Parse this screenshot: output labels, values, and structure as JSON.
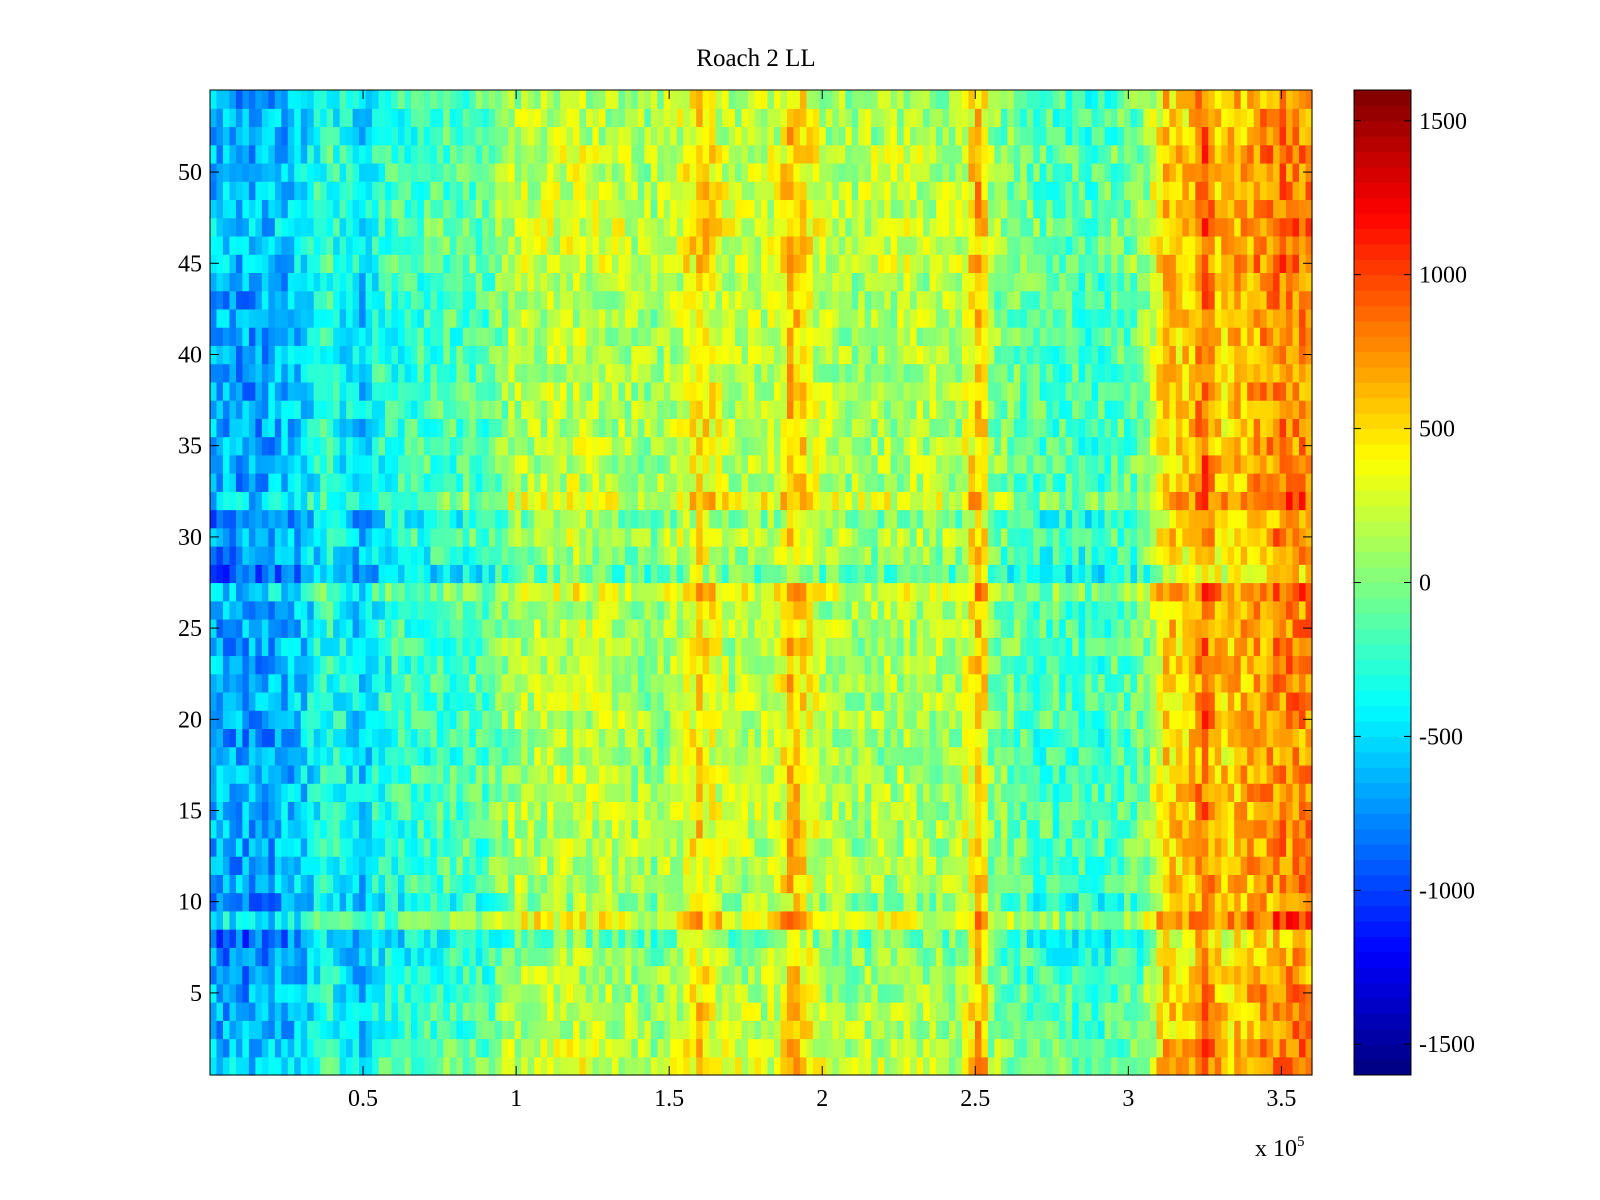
{
  "chart_data": {
    "type": "heatmap",
    "title": "Roach 2 LL",
    "xlabel": "",
    "ylabel": "",
    "x_exponent_label": "x 10",
    "x_exponent_power": "5",
    "xlim": [
      0,
      3.6
    ],
    "ylim": [
      0.5,
      54.5
    ],
    "x_ticks": [
      0.5,
      1,
      1.5,
      2,
      2.5,
      3,
      3.5
    ],
    "x_tick_labels": [
      "0.5",
      "1",
      "1.5",
      "2",
      "2.5",
      "3",
      "3.5"
    ],
    "y_ticks": [
      5,
      10,
      15,
      20,
      25,
      30,
      35,
      40,
      45,
      50
    ],
    "y_tick_labels": [
      "5",
      "10",
      "15",
      "20",
      "25",
      "30",
      "35",
      "40",
      "45",
      "50"
    ],
    "rows": 54,
    "colormap": "jet",
    "colorbar": {
      "clim": [
        -1600,
        1600
      ],
      "ticks": [
        -1500,
        -1000,
        -500,
        0,
        500,
        1000,
        1500
      ],
      "tick_labels": [
        "-1500",
        "-1000",
        "-500",
        "0",
        "500",
        "1000",
        "1500"
      ]
    },
    "column_profile": {
      "x": [
        0,
        0.15,
        0.3,
        0.38,
        0.5,
        0.55,
        0.7,
        0.9,
        1.0,
        1.2,
        1.35,
        1.45,
        1.55,
        1.6,
        1.7,
        1.85,
        1.9,
        1.95,
        2.0,
        2.1,
        2.3,
        2.45,
        2.52,
        2.55,
        2.7,
        2.9,
        3.05,
        3.12,
        3.2,
        3.25,
        3.3,
        3.4,
        3.5,
        3.6
      ],
      "value": [
        -650,
        -700,
        -550,
        -250,
        -550,
        -300,
        -200,
        -150,
        150,
        200,
        150,
        50,
        250,
        500,
        150,
        200,
        600,
        400,
        150,
        100,
        150,
        100,
        700,
        50,
        -150,
        -200,
        -50,
        550,
        500,
        900,
        500,
        650,
        800,
        750
      ]
    },
    "row_offsets": {
      "rows": [
        1,
        2,
        6,
        7,
        8,
        9,
        10,
        18,
        19,
        27,
        28,
        29,
        31,
        32,
        45,
        46,
        47,
        48,
        49,
        50,
        51
      ],
      "offset": [
        100,
        50,
        -50,
        -100,
        -200,
        200,
        -100,
        -50,
        -50,
        150,
        -250,
        -100,
        -150,
        150,
        80,
        60,
        100,
        60,
        50,
        50,
        60
      ]
    }
  }
}
